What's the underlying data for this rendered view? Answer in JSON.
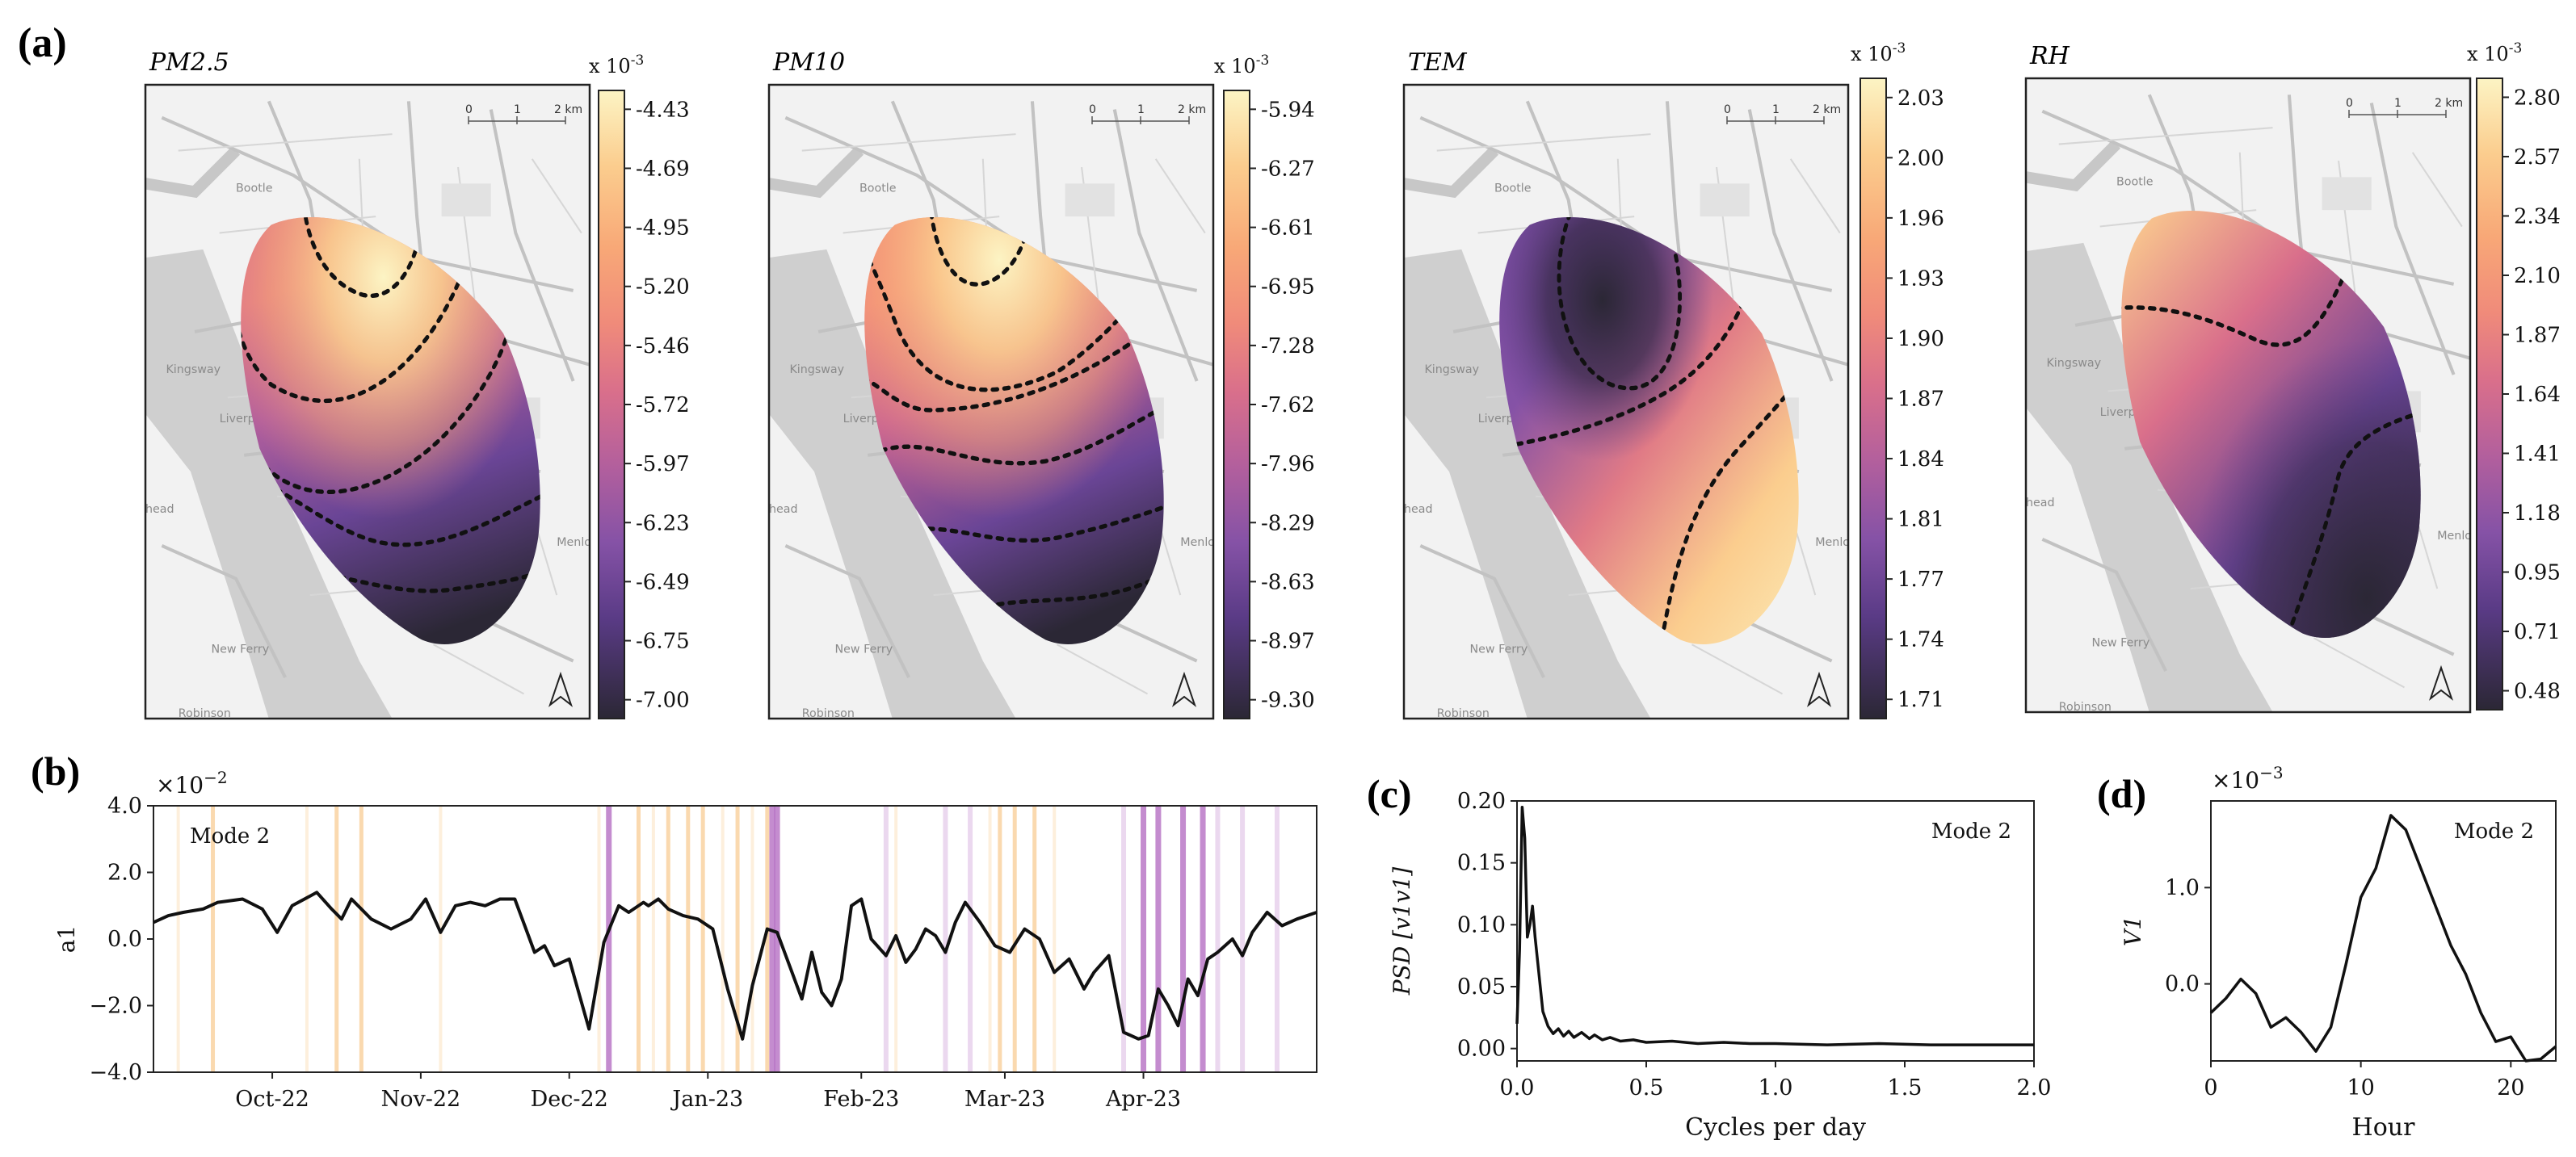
{
  "panel_labels": {
    "a": "(a)",
    "b": "(b)",
    "c": "(c)",
    "d": "(d)"
  },
  "colors": {
    "magma": [
      "#2b2735",
      "#3b2c4f",
      "#5a3b86",
      "#8552a6",
      "#b25f9d",
      "#d96f8b",
      "#f08b7a",
      "#f8a877",
      "#fbcd8e",
      "#fcf4c4"
    ],
    "contour": "#111111",
    "line": "#111111",
    "band_orange": "#f5b460",
    "band_purple": "#a44fb5",
    "land": "#f2f2f2",
    "water": "#cfcfcf",
    "road": "#bfbfbf"
  },
  "map_labels": {
    "bootle": "Bootle",
    "liverpool": "Liverpool",
    "kingsway": "Kingsway",
    "head": "head",
    "new_ferry": "New Ferry",
    "menlove": "Menlove",
    "robinson": "Robinson"
  },
  "scalebar": {
    "t0": "0",
    "t1": "1",
    "t2": "2 km"
  },
  "maps": [
    {
      "title": "PM2.5",
      "multiplier": "x 10",
      "exponent": "-3",
      "ticks": [
        "-4.43",
        "-4.69",
        "-4.95",
        "-5.20",
        "-5.46",
        "-5.72",
        "-5.97",
        "-6.23",
        "-6.49",
        "-6.75",
        "-7.00"
      ],
      "pattern": "pm25"
    },
    {
      "title": "PM10",
      "multiplier": "x 10",
      "exponent": "-3",
      "ticks": [
        "-5.94",
        "-6.27",
        "-6.61",
        "-6.95",
        "-7.28",
        "-7.62",
        "-7.96",
        "-8.29",
        "-8.63",
        "-8.97",
        "-9.30"
      ],
      "pattern": "pm10"
    },
    {
      "title": "TEM",
      "multiplier": "x 10",
      "exponent": "-3",
      "ticks": [
        "2.03",
        "2.00",
        "1.96",
        "1.93",
        "1.90",
        "1.87",
        "1.84",
        "1.81",
        "1.77",
        "1.74",
        "1.71"
      ],
      "pattern": "tem"
    },
    {
      "title": "RH",
      "multiplier": "x 10",
      "exponent": "-3",
      "ticks": [
        "2.80",
        "2.57",
        "2.34",
        "2.10",
        "1.87",
        "1.64",
        "1.41",
        "1.18",
        "0.95",
        "0.71",
        "0.48"
      ],
      "pattern": "rh"
    }
  ],
  "chart_data": [
    {
      "id": "b",
      "type": "line",
      "multiplier": "×10",
      "exponent": "−2",
      "ylabel": "a1",
      "annotation": "Mode 2",
      "ylim": [
        -4.0,
        4.0
      ],
      "y_ticks": [
        {
          "v": 4.0,
          "label": "4.0"
        },
        {
          "v": 2.0,
          "label": "2.0"
        },
        {
          "v": 0.0,
          "label": "0.0"
        },
        {
          "v": -2.0,
          "label": "−2.0"
        },
        {
          "v": -4.0,
          "label": "−4.0"
        }
      ],
      "xlim": [
        0,
        235
      ],
      "x_ticks": [
        {
          "x": 24,
          "label": "Oct-22"
        },
        {
          "x": 54,
          "label": "Nov-22"
        },
        {
          "x": 84,
          "label": "Dec-22"
        },
        {
          "x": 112,
          "label": "Jan-23"
        },
        {
          "x": 143,
          "label": "Feb-23"
        },
        {
          "x": 172,
          "label": "Mar-23"
        },
        {
          "x": 200,
          "label": "Apr-23"
        }
      ],
      "x": [
        0,
        3,
        6,
        10,
        13,
        18,
        22,
        25,
        28,
        33,
        36,
        38,
        40,
        44,
        48,
        52,
        55,
        58,
        61,
        64,
        67,
        70,
        73,
        75,
        77,
        79,
        81,
        84,
        88,
        91,
        94,
        96,
        99,
        100,
        102,
        104,
        107,
        110,
        113,
        116,
        119,
        121,
        124,
        126,
        129,
        131,
        133,
        135,
        137,
        139,
        141,
        143,
        145,
        148,
        150,
        152,
        154,
        156,
        158,
        160,
        162,
        164,
        167,
        170,
        173,
        176,
        179,
        182,
        185,
        188,
        190,
        193,
        196,
        199,
        201,
        203,
        205,
        207,
        209,
        211,
        213,
        215,
        218,
        220,
        222,
        225,
        228,
        231,
        235
      ],
      "values": [
        0.5,
        0.7,
        0.8,
        0.9,
        1.1,
        1.2,
        0.9,
        0.2,
        1.0,
        1.4,
        0.9,
        0.6,
        1.2,
        0.6,
        0.3,
        0.6,
        1.2,
        0.2,
        1.0,
        1.1,
        1.0,
        1.2,
        1.2,
        0.4,
        -0.4,
        -0.2,
        -0.8,
        -0.6,
        -2.7,
        -0.1,
        1.0,
        0.8,
        1.1,
        1.0,
        1.2,
        0.9,
        0.7,
        0.6,
        0.3,
        -1.5,
        -3.0,
        -1.4,
        0.3,
        0.2,
        -1.0,
        -1.8,
        -0.4,
        -1.6,
        -2.0,
        -1.2,
        1.0,
        1.2,
        0.0,
        -0.5,
        0.1,
        -0.7,
        -0.3,
        0.3,
        0.1,
        -0.4,
        0.5,
        1.1,
        0.5,
        -0.2,
        -0.4,
        0.3,
        0.0,
        -1.0,
        -0.6,
        -1.5,
        -1.0,
        -0.5,
        -2.8,
        -3.0,
        -2.9,
        -1.5,
        -2.0,
        -2.6,
        -1.2,
        -1.7,
        -0.6,
        -0.4,
        0.0,
        -0.5,
        0.2,
        0.8,
        0.4,
        0.6,
        0.8
      ],
      "bands_orange": [
        12,
        37,
        42,
        98,
        104,
        108,
        111,
        118,
        124,
        171,
        174,
        178
      ],
      "bands_orange_light": [
        5,
        31,
        58,
        90,
        101,
        115,
        121,
        150,
        169,
        182
      ],
      "bands_purple": [
        92,
        125,
        126,
        200,
        203,
        208,
        212
      ],
      "bands_purple_light": [
        148,
        160,
        165,
        196,
        215,
        220,
        227
      ]
    },
    {
      "id": "c",
      "type": "line",
      "ylabel": "PSD [v1v1]",
      "xlabel": "Cycles per day",
      "annotation": "Mode 2",
      "xlim": [
        0,
        2
      ],
      "ylim": [
        -0.01,
        0.2
      ],
      "x_ticks": [
        {
          "v": 0.0,
          "label": "0.0"
        },
        {
          "v": 0.5,
          "label": "0.5"
        },
        {
          "v": 1.0,
          "label": "1.0"
        },
        {
          "v": 1.5,
          "label": "1.5"
        },
        {
          "v": 2.0,
          "label": "2.0"
        }
      ],
      "y_ticks": [
        {
          "v": 0.2,
          "label": "0.20"
        },
        {
          "v": 0.15,
          "label": "0.15"
        },
        {
          "v": 0.1,
          "label": "0.10"
        },
        {
          "v": 0.05,
          "label": "0.05"
        },
        {
          "v": 0.0,
          "label": "0.00"
        }
      ],
      "x": [
        0.0,
        0.01,
        0.02,
        0.03,
        0.04,
        0.05,
        0.06,
        0.07,
        0.08,
        0.09,
        0.1,
        0.12,
        0.14,
        0.16,
        0.18,
        0.2,
        0.22,
        0.25,
        0.28,
        0.3,
        0.33,
        0.36,
        0.4,
        0.45,
        0.5,
        0.6,
        0.7,
        0.8,
        0.9,
        1.0,
        1.2,
        1.4,
        1.6,
        1.8,
        2.0
      ],
      "values": [
        0.02,
        0.08,
        0.195,
        0.17,
        0.09,
        0.1,
        0.115,
        0.09,
        0.07,
        0.05,
        0.03,
        0.018,
        0.012,
        0.016,
        0.01,
        0.014,
        0.009,
        0.013,
        0.008,
        0.011,
        0.007,
        0.009,
        0.006,
        0.007,
        0.005,
        0.006,
        0.004,
        0.005,
        0.004,
        0.004,
        0.003,
        0.004,
        0.003,
        0.003,
        0.003
      ]
    },
    {
      "id": "d",
      "type": "line",
      "multiplier": "×10",
      "exponent": "−3",
      "ylabel": "V1",
      "xlabel": "Hour",
      "annotation": "Mode 2",
      "xlim": [
        0,
        23
      ],
      "ylim": [
        -0.8,
        1.9
      ],
      "x_ticks": [
        {
          "v": 0,
          "label": "0"
        },
        {
          "v": 10,
          "label": "10"
        },
        {
          "v": 20,
          "label": "20"
        }
      ],
      "y_ticks": [
        {
          "v": 1.0,
          "label": "1.0"
        },
        {
          "v": 0.0,
          "label": "0.0"
        }
      ],
      "x": [
        0,
        1,
        2,
        3,
        4,
        5,
        6,
        7,
        8,
        9,
        10,
        11,
        12,
        13,
        14,
        15,
        16,
        17,
        18,
        19,
        20,
        21,
        22,
        23
      ],
      "values": [
        -0.3,
        -0.15,
        0.05,
        -0.1,
        -0.45,
        -0.35,
        -0.5,
        -0.7,
        -0.45,
        0.2,
        0.9,
        1.2,
        1.75,
        1.6,
        1.2,
        0.8,
        0.4,
        0.1,
        -0.3,
        -0.6,
        -0.55,
        -0.8,
        -0.78,
        -0.65
      ]
    }
  ]
}
